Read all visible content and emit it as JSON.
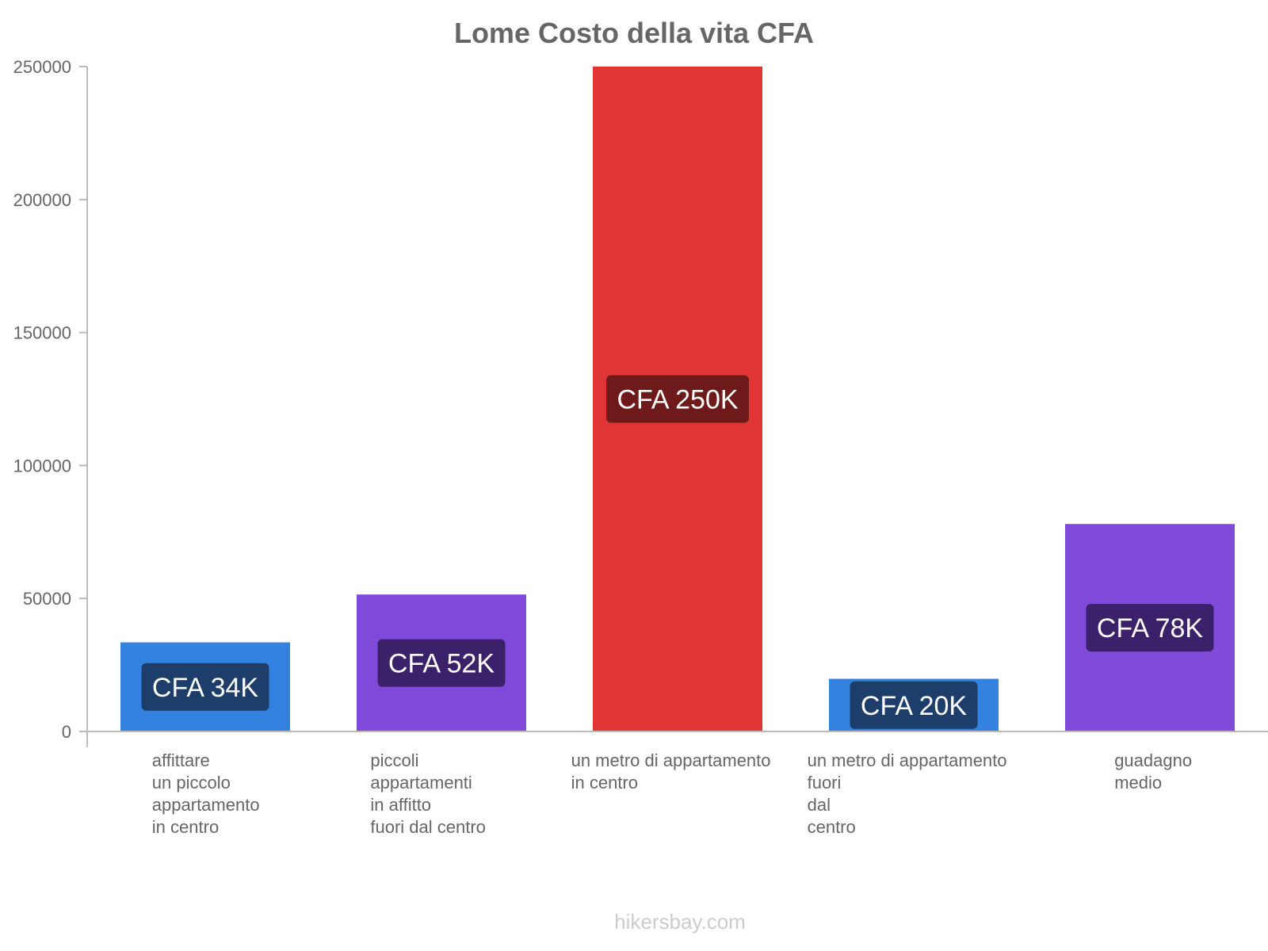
{
  "chart_data": {
    "type": "bar",
    "title": "Lome Costo della vita CFA",
    "xlabel": "",
    "ylabel": "",
    "ylim": [
      0,
      250000
    ],
    "yticks": [
      0,
      50000,
      100000,
      150000,
      200000,
      250000
    ],
    "ytick_labels": [
      "0",
      "50000",
      "100000",
      "150000",
      "200000",
      "250000"
    ],
    "grid": false,
    "categories": [
      [
        "affittare",
        "un piccolo",
        "appartamento",
        "in centro"
      ],
      [
        "piccoli",
        "appartamenti",
        "in affitto",
        "fuori dal centro"
      ],
      [
        "un metro di appartamento",
        "in centro"
      ],
      [
        "un metro di appartamento",
        "fuori",
        "dal",
        "centro"
      ],
      [
        "guadagno",
        "medio"
      ]
    ],
    "values": [
      33500,
      51500,
      250000,
      19800,
      78000
    ],
    "data_labels": [
      "CFA 34K",
      "CFA 52K",
      "CFA 250K",
      "CFA 20K",
      "CFA 78K"
    ],
    "bar_colors": [
      "#3482df",
      "#7f4ad9",
      "#e03535",
      "#3482df",
      "#7f4ad9"
    ],
    "label_bg_colors": [
      "#1d3e6b",
      "#3b2169",
      "#6e1a1a",
      "#1d3e6b",
      "#3b2169"
    ],
    "label_overhang_color": "#7a7a7a"
  },
  "watermark": "hikersbay.com",
  "colors": {
    "axis": "#bbbbbb",
    "text": "#666666",
    "background": "#ffffff"
  }
}
